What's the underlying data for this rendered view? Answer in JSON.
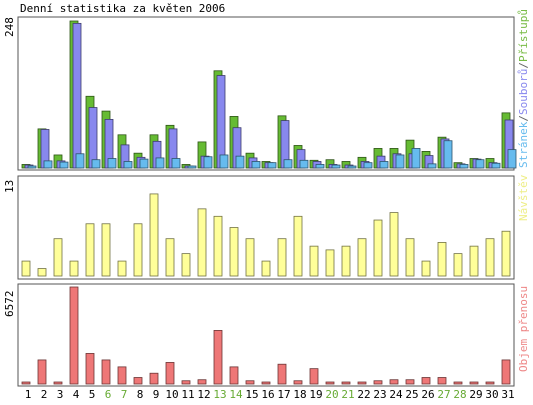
{
  "chart_data": {
    "title": "Denní statistika za květen 2006",
    "type": "bar",
    "categories": [
      "1",
      "2",
      "3",
      "4",
      "5",
      "6",
      "7",
      "8",
      "9",
      "10",
      "11",
      "12",
      "13",
      "14",
      "15",
      "16",
      "17",
      "18",
      "19",
      "20",
      "21",
      "22",
      "23",
      "24",
      "25",
      "26",
      "27",
      "28",
      "29",
      "30",
      "31"
    ],
    "weekend_days": [
      "6",
      "7",
      "13",
      "14",
      "20",
      "21",
      "27",
      "28"
    ],
    "panels": [
      {
        "type": "bar",
        "max_label": "248",
        "ymax": 248,
        "legend": [
          {
            "text": "Stránek",
            "color": "#66BBEE"
          },
          {
            "text": "/",
            "color": "#666666"
          },
          {
            "text": "Souborů",
            "color": "#8888EE"
          },
          {
            "text": "/",
            "color": "#666666"
          },
          {
            "text": "Přístupů",
            "color": "#77BB44"
          }
        ],
        "series": [
          {
            "name": "Přístupů",
            "color": "#66BB33",
            "values": [
              6,
              66,
              22,
              248,
              121,
              96,
              56,
              25,
              56,
              72,
              6,
              44,
              164,
              87,
              25,
              11,
              88,
              38,
              13,
              14,
              11,
              18,
              33,
              33,
              47,
              28,
              52,
              9,
              16,
              16,
              93
            ]
          },
          {
            "name": "Souborů",
            "color": "#8888EE",
            "values": [
              5,
              65,
              12,
              244,
              102,
              82,
              39,
              18,
              45,
              66,
              3,
              20,
              156,
              68,
              17,
              9,
              80,
              31,
              11,
              6,
              5,
              11,
              20,
              24,
              24,
              21,
              49,
              7,
              15,
              9,
              81
            ]
          },
          {
            "name": "Stránek",
            "color": "#66BBEE",
            "values": [
              2,
              12,
              10,
              24,
              14,
              16,
              11,
              15,
              17,
              16,
              3,
              19,
              22,
              20,
              11,
              9,
              14,
              13,
              6,
              5,
              3,
              9,
              11,
              22,
              33,
              7,
              46,
              6,
              14,
              8,
              31
            ]
          }
        ]
      },
      {
        "type": "bar",
        "max_label": "13",
        "ymax": 13,
        "legend": [
          {
            "text": "Návštěv",
            "color": "#EEEE88"
          }
        ],
        "series": [
          {
            "name": "Návštěv",
            "color": "#FFFF99",
            "values": [
              2,
              1,
              5,
              2,
              7,
              7,
              2,
              7,
              11,
              5,
              3,
              9,
              8,
              6.5,
              5,
              2,
              5,
              8,
              4,
              3.5,
              4,
              5,
              7.5,
              8.5,
              5,
              2,
              4.5,
              3,
              4,
              5,
              6
            ]
          }
        ]
      },
      {
        "type": "bar",
        "max_label": "6572",
        "ymax": 6572,
        "legend": [
          {
            "text": "Objem přenosu",
            "color": "#EE8888"
          }
        ],
        "series": [
          {
            "name": "Objem přenosu",
            "color": "#EE7777",
            "values": [
              90,
              1630,
              90,
              6572,
              2070,
              1630,
              1160,
              440,
              730,
              1460,
              220,
              290,
              3630,
              1160,
              220,
              90,
              1340,
              220,
              1040,
              90,
              90,
              90,
              220,
              290,
              290,
              440,
              440,
              90,
              90,
              90,
              1630
            ]
          }
        ]
      }
    ]
  }
}
